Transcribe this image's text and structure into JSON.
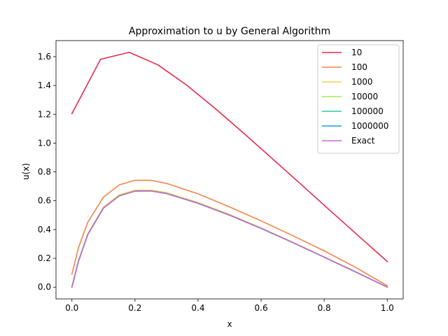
{
  "chart_data": {
    "type": "line",
    "title": "Approximation to u by General Algorithm",
    "xlabel": "x",
    "ylabel": "u(x)",
    "xlim": [
      -0.0505,
      1.0505
    ],
    "ylim": [
      -0.0815,
      1.7115
    ],
    "xticks": [
      0.0,
      0.2,
      0.4,
      0.6,
      0.8,
      1.0
    ],
    "xtick_labels": [
      "0.0",
      "0.2",
      "0.4",
      "0.6",
      "0.8",
      "1.0"
    ],
    "yticks": [
      0.0,
      0.2,
      0.4,
      0.6,
      0.8,
      1.0,
      1.2,
      1.4,
      1.6
    ],
    "ytick_labels": [
      "0.0",
      "0.2",
      "0.4",
      "0.6",
      "0.8",
      "1.0",
      "1.2",
      "1.4",
      "1.6"
    ],
    "grid": false,
    "legend_position": "top-right",
    "series": [
      {
        "name": "10",
        "color": "#e8294b",
        "x": [
          0.0,
          0.0909,
          0.1818,
          0.2727,
          0.3636,
          0.4545,
          0.5455,
          0.6364,
          0.7273,
          0.8182,
          0.9091,
          1.0
        ],
        "y": [
          1.205,
          1.582,
          1.63,
          1.543,
          1.403,
          1.24,
          1.067,
          0.89,
          0.712,
          0.533,
          0.355,
          0.178
        ]
      },
      {
        "name": "100",
        "color": "#f5834a",
        "x": [
          0.0,
          0.02,
          0.05,
          0.1,
          0.15,
          0.2,
          0.25,
          0.3,
          0.4,
          0.5,
          0.6,
          0.7,
          0.8,
          0.9,
          1.0
        ],
        "y": [
          0.09,
          0.27,
          0.45,
          0.625,
          0.71,
          0.742,
          0.742,
          0.72,
          0.648,
          0.557,
          0.46,
          0.358,
          0.252,
          0.137,
          0.01
        ]
      },
      {
        "name": "1000",
        "color": "#f3d24a",
        "x": [
          0.0,
          0.02,
          0.05,
          0.1,
          0.15,
          0.2,
          0.25,
          0.3,
          0.4,
          0.5,
          0.6,
          0.7,
          0.8,
          0.9,
          1.0
        ],
        "y": [
          0.005,
          0.18,
          0.37,
          0.555,
          0.64,
          0.673,
          0.674,
          0.656,
          0.587,
          0.504,
          0.411,
          0.312,
          0.21,
          0.107,
          0.002
        ]
      },
      {
        "name": "10000",
        "color": "#a6e858",
        "x": [
          0.0,
          0.02,
          0.05,
          0.1,
          0.15,
          0.2,
          0.25,
          0.3,
          0.4,
          0.5,
          0.6,
          0.7,
          0.8,
          0.9,
          1.0
        ],
        "y": [
          0.0,
          0.176,
          0.365,
          0.55,
          0.635,
          0.668,
          0.669,
          0.651,
          0.583,
          0.5,
          0.408,
          0.31,
          0.208,
          0.105,
          0.0
        ]
      },
      {
        "name": "100000",
        "color": "#2bcaa0",
        "x": [
          0.0,
          0.02,
          0.05,
          0.1,
          0.15,
          0.2,
          0.25,
          0.3,
          0.4,
          0.5,
          0.6,
          0.7,
          0.8,
          0.9,
          1.0
        ],
        "y": [
          0.0,
          0.175,
          0.364,
          0.549,
          0.634,
          0.667,
          0.668,
          0.65,
          0.582,
          0.5,
          0.408,
          0.31,
          0.208,
          0.105,
          0.0
        ]
      },
      {
        "name": "1000000",
        "color": "#19a6d6",
        "x": [
          0.0,
          0.02,
          0.05,
          0.1,
          0.15,
          0.2,
          0.25,
          0.3,
          0.4,
          0.5,
          0.6,
          0.7,
          0.8,
          0.9,
          1.0
        ],
        "y": [
          0.0,
          0.175,
          0.364,
          0.549,
          0.634,
          0.667,
          0.668,
          0.65,
          0.582,
          0.5,
          0.408,
          0.31,
          0.208,
          0.105,
          0.0
        ]
      },
      {
        "name": "Exact",
        "color": "#c46ac8",
        "x": [
          0.0,
          0.02,
          0.05,
          0.1,
          0.15,
          0.2,
          0.25,
          0.3,
          0.4,
          0.5,
          0.6,
          0.7,
          0.8,
          0.9,
          1.0
        ],
        "y": [
          0.0,
          0.175,
          0.364,
          0.549,
          0.634,
          0.667,
          0.668,
          0.65,
          0.582,
          0.5,
          0.408,
          0.31,
          0.208,
          0.105,
          0.0
        ]
      }
    ]
  }
}
